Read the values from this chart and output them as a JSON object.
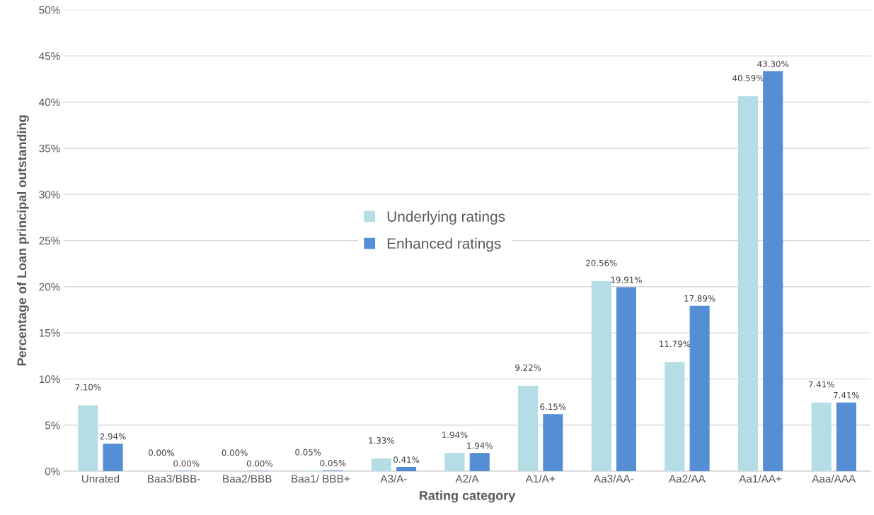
{
  "chart_data": {
    "type": "bar",
    "xlabel": "Rating category",
    "ylabel": "Percentage of Loan principal outstanding",
    "categories": [
      "Unrated",
      "Baa3/BBB-",
      "Baa2/BBB",
      "Baa1/ BBB+",
      "A3/A-",
      "A2/A",
      "A1/A+",
      "Aa3/AA-",
      "Aa2/AA",
      "Aa1/AA+",
      "Aaa/AAA"
    ],
    "series": [
      {
        "name": "Underlying ratings",
        "color": "#b4dde6",
        "values": [
          7.1,
          0.0,
          0.0,
          0.05,
          1.33,
          1.94,
          9.22,
          20.56,
          11.79,
          40.59,
          7.41
        ],
        "value_labels": [
          "7.10%",
          "0.00%",
          "0.00%",
          "0.05%",
          "1.33%",
          "1.94%",
          "9.22%",
          "20.56%",
          "11.79%",
          "40.59%",
          "7.41%"
        ]
      },
      {
        "name": "Enhanced ratings",
        "color": "#558ed5",
        "values": [
          2.94,
          0.0,
          0.0,
          0.05,
          0.41,
          1.94,
          6.15,
          19.91,
          17.89,
          43.3,
          7.41
        ],
        "value_labels": [
          "2.94%",
          "0.00%",
          "0.00%",
          "0.05%",
          "0.41%",
          "1.94%",
          "6.15%",
          "19.91%",
          "17.89%",
          "43.30%",
          "7.41%"
        ]
      }
    ],
    "ylim": [
      0,
      50
    ],
    "yticks": [
      {
        "value": 0,
        "label": "0%"
      },
      {
        "value": 5,
        "label": "5%"
      },
      {
        "value": 10,
        "label": "10%"
      },
      {
        "value": 15,
        "label": "15%"
      },
      {
        "value": 20,
        "label": "20%"
      },
      {
        "value": 25,
        "label": "25%"
      },
      {
        "value": 30,
        "label": "30%"
      },
      {
        "value": 35,
        "label": "35%"
      },
      {
        "value": 40,
        "label": "40%"
      },
      {
        "value": 45,
        "label": "45%"
      },
      {
        "value": 50,
        "label": "50%"
      }
    ],
    "grid": "y",
    "legend": "center"
  }
}
